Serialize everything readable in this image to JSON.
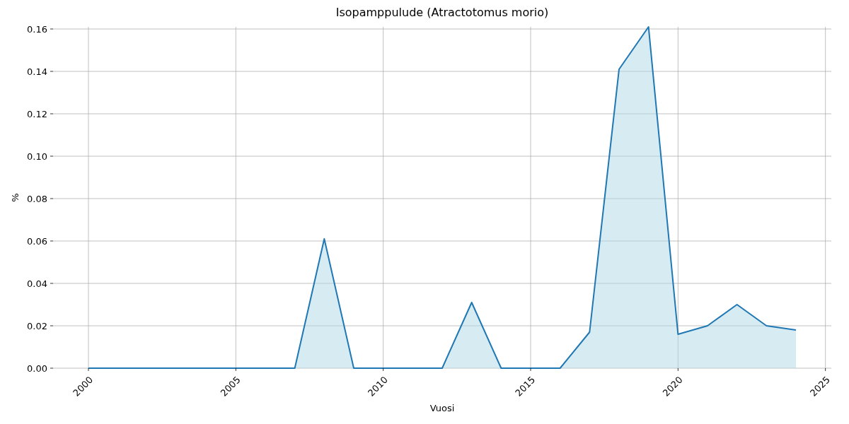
{
  "chart_data": {
    "type": "area",
    "title": "Isopamppulude (Atractotomus morio)",
    "xlabel": "Vuosi",
    "ylabel": "%",
    "x": [
      2000,
      2001,
      2002,
      2003,
      2004,
      2005,
      2006,
      2007,
      2008,
      2009,
      2010,
      2011,
      2012,
      2013,
      2014,
      2015,
      2016,
      2017,
      2018,
      2019,
      2020,
      2021,
      2022,
      2023,
      2024
    ],
    "series": [
      {
        "color": "#1f77b4",
        "values": [
          0,
          0,
          0,
          0,
          0,
          0,
          0,
          0,
          0.061,
          0,
          0,
          0,
          0,
          0.031,
          0,
          0,
          0,
          0.017,
          0.141,
          0.161,
          0.016,
          0.02,
          0.03,
          0.02,
          0.018
        ]
      }
    ],
    "xlim": [
      1998.8,
      2025.2
    ],
    "xticks": [
      2000,
      2005,
      2010,
      2015,
      2020,
      2025
    ],
    "ylim": [
      0,
      0.161
    ],
    "yticks": [
      {
        "value": 0,
        "label": "0.00"
      },
      {
        "value": 0.02,
        "label": "0.02"
      },
      {
        "value": 0.04,
        "label": "0.04"
      },
      {
        "value": 0.06,
        "label": "0.06"
      },
      {
        "value": 0.08,
        "label": "0.08"
      },
      {
        "value": 0.1,
        "label": "0.10"
      },
      {
        "value": 0.12,
        "label": "0.12"
      },
      {
        "value": 0.14,
        "label": "0.14"
      },
      {
        "value": 0.16,
        "label": "0.16"
      }
    ],
    "grid": true
  }
}
